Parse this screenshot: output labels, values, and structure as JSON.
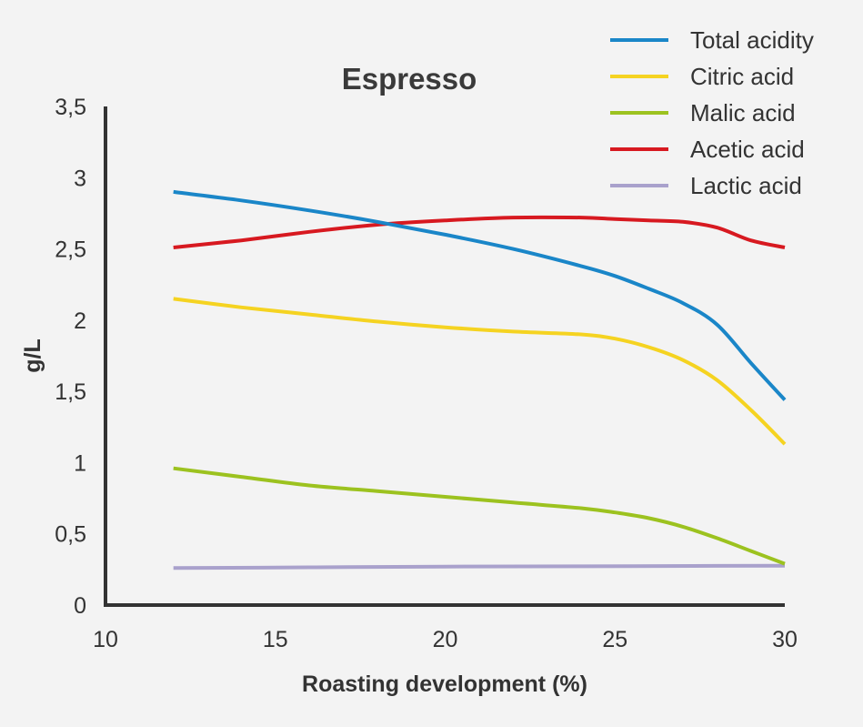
{
  "chart_data": {
    "type": "line",
    "title": "Espresso",
    "xlabel": "Roasting development (%)",
    "ylabel": "g/L",
    "xlim": [
      10,
      30
    ],
    "ylim": [
      0,
      3.5
    ],
    "x_ticks": [
      10,
      15,
      20,
      25,
      30
    ],
    "y_ticks": [
      0,
      0.5,
      1,
      1.5,
      2,
      2.5,
      3,
      3.5
    ],
    "y_tick_labels": [
      "0",
      "0,5",
      "1",
      "1,5",
      "2",
      "2,5",
      "3",
      "3,5"
    ],
    "x_tick_labels": [
      "10",
      "15",
      "20",
      "25",
      "30"
    ],
    "legend_position": "top-right",
    "grid": false,
    "series": [
      {
        "name": "Total acidity",
        "color": "#1a86c8",
        "x": [
          12,
          14,
          16,
          18,
          20,
          22,
          24,
          25,
          26,
          27,
          28,
          29,
          30
        ],
        "y": [
          2.9,
          2.84,
          2.77,
          2.69,
          2.6,
          2.5,
          2.38,
          2.31,
          2.22,
          2.12,
          1.97,
          1.7,
          1.44
        ]
      },
      {
        "name": "Citric acid",
        "color": "#f5d321",
        "x": [
          12,
          14,
          16,
          18,
          20,
          22,
          24,
          25,
          26,
          27,
          28,
          29,
          30
        ],
        "y": [
          2.15,
          2.09,
          2.04,
          1.99,
          1.95,
          1.92,
          1.9,
          1.87,
          1.81,
          1.72,
          1.58,
          1.37,
          1.13
        ]
      },
      {
        "name": "Malic acid",
        "color": "#9cc21f",
        "x": [
          12,
          14,
          16,
          18,
          20,
          22,
          24,
          25,
          26,
          27,
          28,
          29,
          30
        ],
        "y": [
          0.96,
          0.9,
          0.84,
          0.8,
          0.76,
          0.72,
          0.68,
          0.65,
          0.61,
          0.55,
          0.47,
          0.38,
          0.29
        ]
      },
      {
        "name": "Acetic acid",
        "color": "#d71920",
        "x": [
          12,
          14,
          16,
          18,
          20,
          22,
          24,
          25,
          26,
          27,
          28,
          29,
          30
        ],
        "y": [
          2.51,
          2.56,
          2.62,
          2.67,
          2.7,
          2.72,
          2.72,
          2.71,
          2.7,
          2.69,
          2.65,
          2.56,
          2.51
        ]
      },
      {
        "name": "Lactic acid",
        "color": "#a9a1cc",
        "x": [
          12,
          16,
          20,
          24,
          28,
          30
        ],
        "y": [
          0.26,
          0.265,
          0.27,
          0.272,
          0.275,
          0.276
        ]
      }
    ]
  }
}
